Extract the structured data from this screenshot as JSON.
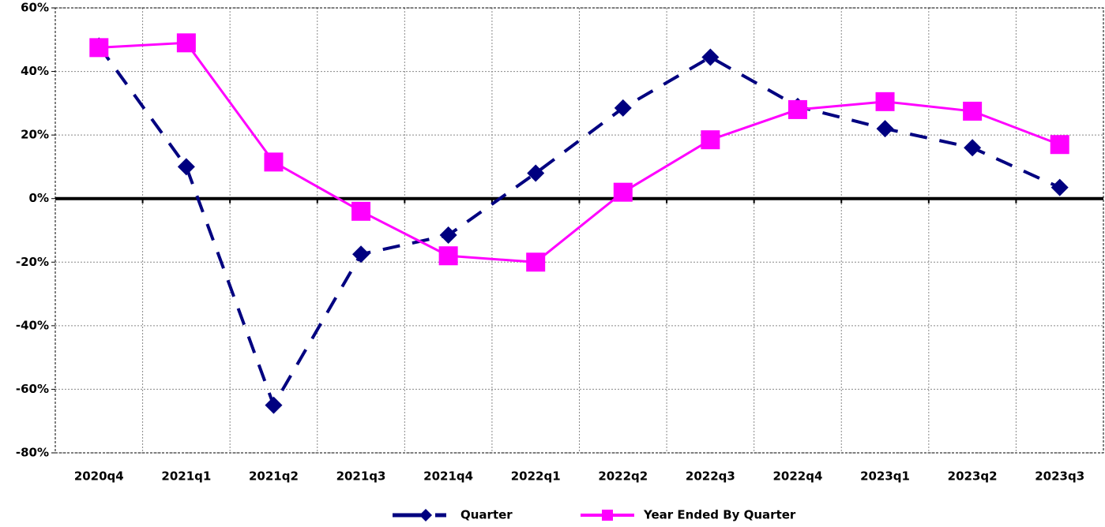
{
  "chart_data": {
    "type": "line",
    "categories": [
      "2020q4",
      "2021q1",
      "2021q2",
      "2021q3",
      "2021q4",
      "2022q1",
      "2022q2",
      "2022q3",
      "2022q4",
      "2023q1",
      "2023q2",
      "2023q3"
    ],
    "series": [
      {
        "name": "Quarter",
        "color": "#000080",
        "values": [
          48,
          10,
          -65,
          -17.5,
          -11.5,
          8,
          28.5,
          44.5,
          29,
          22,
          16,
          3.5
        ]
      },
      {
        "name": "Year Ended By Quarter",
        "color": "#ff00ff",
        "values": [
          47.5,
          49,
          11.5,
          -4,
          -18,
          -20,
          2,
          18.5,
          28,
          30.5,
          27.5,
          17
        ]
      }
    ],
    "ylim": [
      -80,
      60
    ],
    "yticks": [
      {
        "value": -80,
        "label": "-80%"
      },
      {
        "value": -60,
        "label": "-60%"
      },
      {
        "value": -40,
        "label": "-40%"
      },
      {
        "value": -20,
        "label": "-20%"
      },
      {
        "value": 0,
        "label": "0%"
      },
      {
        "value": 20,
        "label": "20%"
      },
      {
        "value": 40,
        "label": "40%"
      },
      {
        "value": 60,
        "label": "60%"
      }
    ],
    "grid": true,
    "legend": "bottom"
  }
}
